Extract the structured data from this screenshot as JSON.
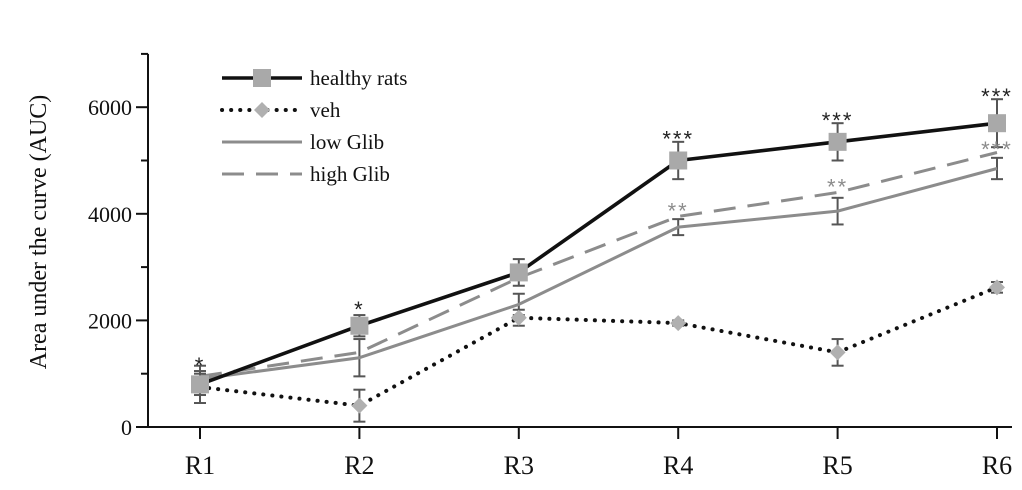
{
  "chart_data": {
    "type": "line",
    "title": "",
    "xlabel": "",
    "ylabel": "Area under the curve (AUC)",
    "categories": [
      "R1",
      "R2",
      "R3",
      "R4",
      "R5",
      "R6"
    ],
    "ylim": [
      0,
      7000
    ],
    "yticks": [
      "0",
      "2000",
      "4000",
      "6000"
    ],
    "grid": false,
    "legend_position": "top-left",
    "series": [
      {
        "name": "healthy rats",
        "values": [
          800,
          1900,
          2900,
          5000,
          5350,
          5700
        ],
        "errors": [
          200,
          200,
          250,
          350,
          350,
          450
        ],
        "style": "solid-thick",
        "marker": "square",
        "line_color": "#111111",
        "marker_color": "#a9a9a9"
      },
      {
        "name": "veh",
        "values": [
          750,
          400,
          2050,
          1950,
          1400,
          2620
        ],
        "errors": [
          300,
          300,
          150,
          50,
          250,
          100
        ],
        "style": "dotted",
        "marker": "diamond",
        "line_color": "#111111",
        "marker_color": "#b0b0b0"
      },
      {
        "name": "low Glib",
        "values": [
          900,
          1300,
          2300,
          3750,
          4050,
          4850
        ],
        "errors": [
          250,
          350,
          200,
          150,
          250,
          200
        ],
        "style": "solid-thin",
        "marker": "none",
        "line_color": "#8c8c8c",
        "marker_color": "#8c8c8c"
      },
      {
        "name": "high Glib",
        "values": [
          950,
          1400,
          2800,
          3950,
          4400,
          5150
        ],
        "errors": [
          0,
          0,
          0,
          0,
          0,
          0
        ],
        "style": "dashed",
        "marker": "none",
        "line_color": "#8c8c8c",
        "marker_color": "#8c8c8c"
      }
    ],
    "annotations": [
      {
        "category": "R1",
        "text": "*",
        "y": 1200,
        "color": "#222222"
      },
      {
        "category": "R2",
        "text": "*",
        "y": 2250,
        "color": "#222222"
      },
      {
        "category": "R4",
        "text": "***",
        "y": 5450,
        "color": "#222222"
      },
      {
        "category": "R4",
        "text": "**",
        "y": 4100,
        "color": "#8c8c8c"
      },
      {
        "category": "R5",
        "text": "***",
        "y": 5800,
        "color": "#222222"
      },
      {
        "category": "R5",
        "text": "**",
        "y": 4550,
        "color": "#8c8c8c"
      },
      {
        "category": "R6",
        "text": "***",
        "y": 6250,
        "color": "#222222"
      },
      {
        "category": "R6",
        "text": "***",
        "y": 5250,
        "color": "#8c8c8c"
      }
    ]
  }
}
